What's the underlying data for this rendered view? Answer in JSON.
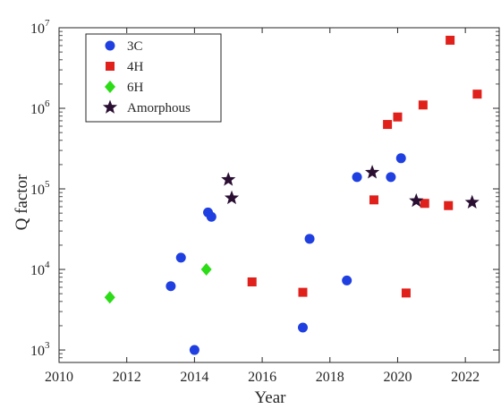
{
  "chart_data": {
    "type": "scatter",
    "xlabel": "Year",
    "ylabel": "Q factor",
    "xlim": [
      2010,
      2023
    ],
    "ylim": [
      700,
      10000000
    ],
    "yscale": "log",
    "xticks": [
      2010,
      2012,
      2014,
      2016,
      2018,
      2020,
      2022
    ],
    "yticks": [
      {
        "value": 1000,
        "base": "10",
        "exp": "3"
      },
      {
        "value": 10000,
        "base": "10",
        "exp": "4"
      },
      {
        "value": 100000,
        "base": "10",
        "exp": "5"
      },
      {
        "value": 1000000,
        "base": "10",
        "exp": "6"
      },
      {
        "value": 10000000,
        "base": "10",
        "exp": "7"
      }
    ],
    "grid": false,
    "legend_position": "top-left",
    "series": [
      {
        "name": "3C",
        "marker": "circle",
        "color": "#1f3fe0",
        "points": [
          {
            "x": 2013.3,
            "y": 6200
          },
          {
            "x": 2013.6,
            "y": 14000
          },
          {
            "x": 2014.0,
            "y": 1000
          },
          {
            "x": 2014.4,
            "y": 51000
          },
          {
            "x": 2014.5,
            "y": 45000
          },
          {
            "x": 2017.2,
            "y": 1900
          },
          {
            "x": 2017.4,
            "y": 24000
          },
          {
            "x": 2018.5,
            "y": 7300
          },
          {
            "x": 2018.8,
            "y": 140000
          },
          {
            "x": 2019.8,
            "y": 140000
          },
          {
            "x": 2020.1,
            "y": 240000
          }
        ]
      },
      {
        "name": "4H",
        "marker": "square",
        "color": "#e0201a",
        "points": [
          {
            "x": 2015.7,
            "y": 7000
          },
          {
            "x": 2017.2,
            "y": 5200
          },
          {
            "x": 2019.3,
            "y": 73000
          },
          {
            "x": 2019.7,
            "y": 630000
          },
          {
            "x": 2020.0,
            "y": 780000
          },
          {
            "x": 2020.25,
            "y": 5100
          },
          {
            "x": 2020.75,
            "y": 1100000
          },
          {
            "x": 2020.8,
            "y": 66000
          },
          {
            "x": 2021.5,
            "y": 62000
          },
          {
            "x": 2021.55,
            "y": 7000000
          },
          {
            "x": 2022.35,
            "y": 1500000
          }
        ]
      },
      {
        "name": "6H",
        "marker": "diamond",
        "color": "#2bdc16",
        "points": [
          {
            "x": 2011.5,
            "y": 4500
          },
          {
            "x": 2014.35,
            "y": 10000
          }
        ]
      },
      {
        "name": "Amorphous",
        "marker": "star",
        "color": "#2a0f33",
        "points": [
          {
            "x": 2015.0,
            "y": 130000
          },
          {
            "x": 2015.1,
            "y": 77000
          },
          {
            "x": 2019.25,
            "y": 160000
          },
          {
            "x": 2020.55,
            "y": 71000
          },
          {
            "x": 2022.2,
            "y": 68000
          }
        ]
      }
    ]
  }
}
